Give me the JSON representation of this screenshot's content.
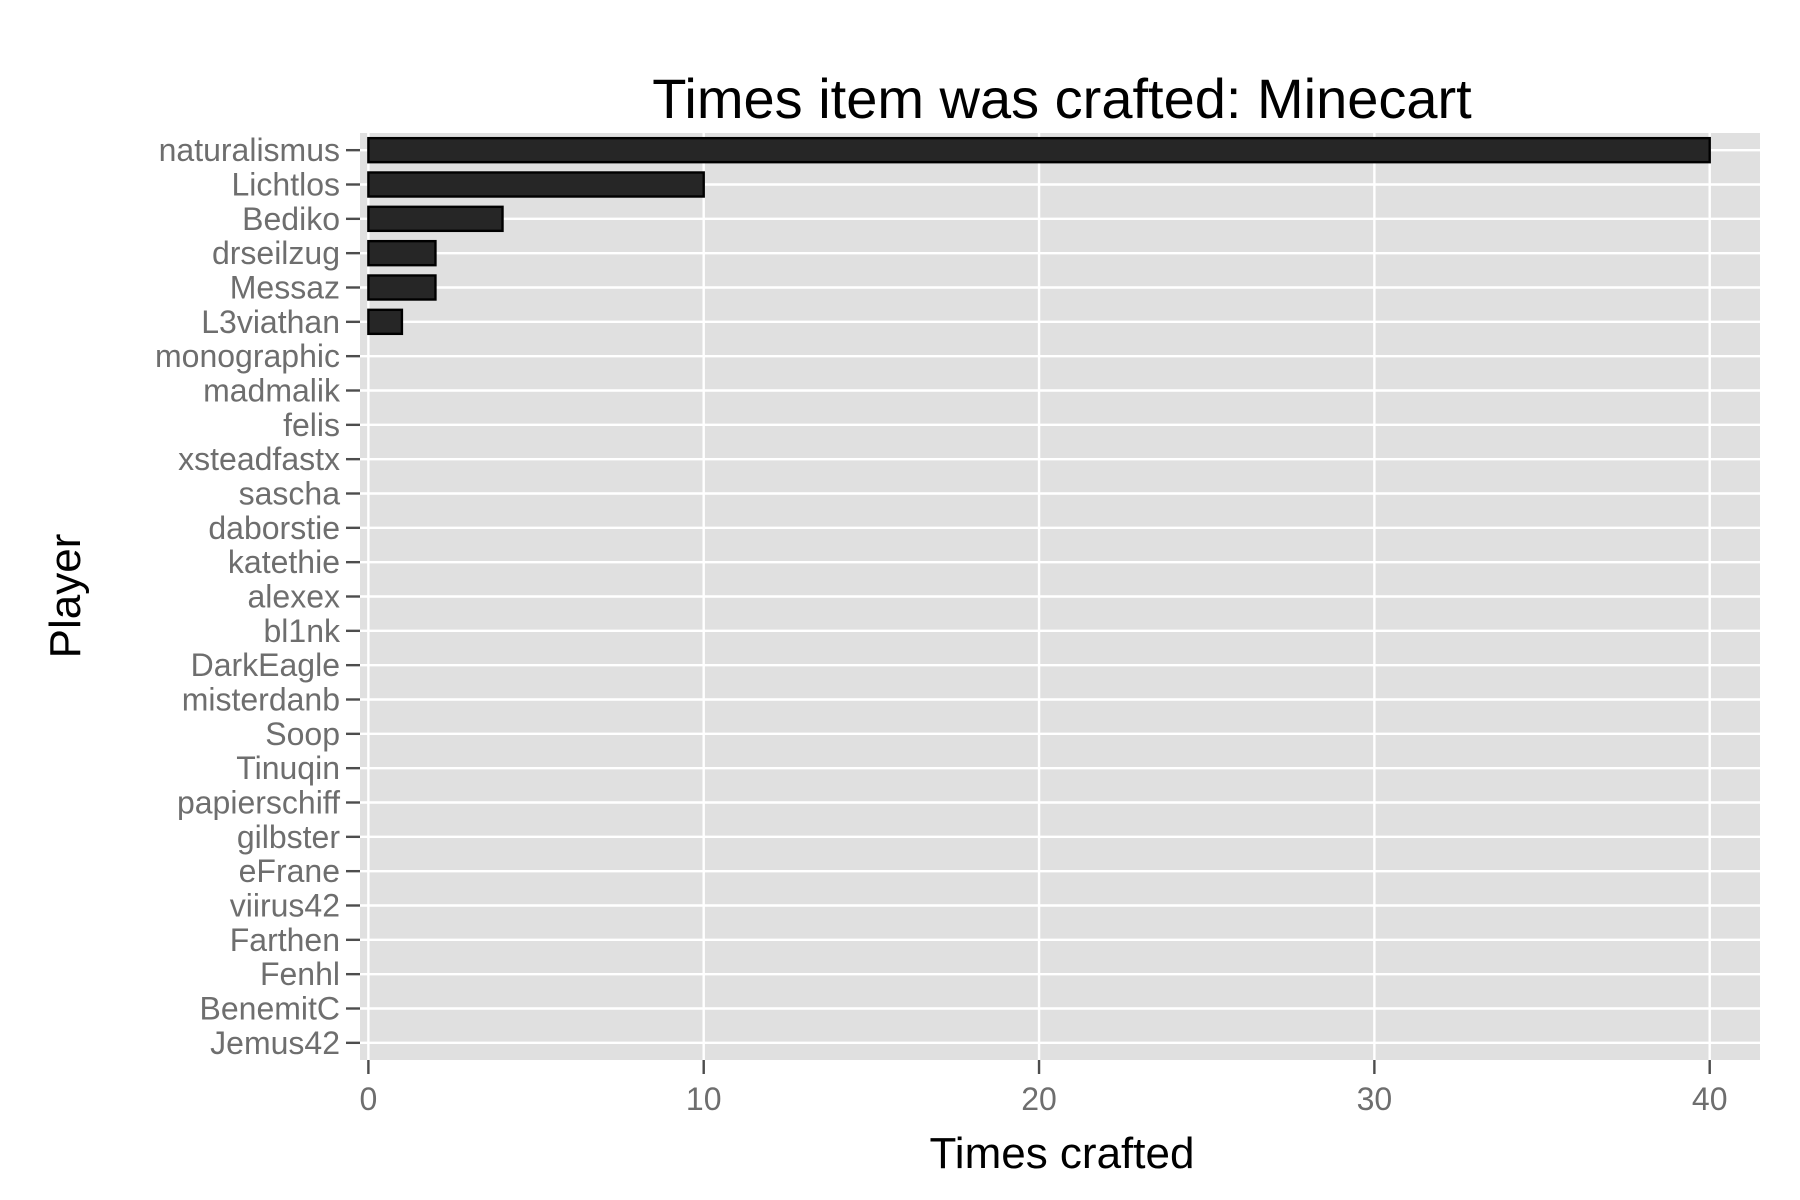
{
  "chart_data": {
    "type": "bar",
    "orientation": "horizontal",
    "title": "Times item was crafted: Minecart",
    "xlabel": "Times crafted",
    "ylabel": "Player",
    "xlim": [
      -0.25,
      41.5
    ],
    "x_ticks": [
      0,
      10,
      20,
      30,
      40
    ],
    "grid": true,
    "categories": [
      "naturalismus",
      "Lichtlos",
      "Bediko",
      "drseilzug",
      "Messaz",
      "L3viathan",
      "monographic",
      "madmalik",
      "felis",
      "xsteadfastx",
      "sascha",
      "daborstie",
      "katethie",
      "alexex",
      "bl1nk",
      "DarkEagle",
      "misterdanb",
      "Soop",
      "Tinuqin",
      "papierschiff",
      "gilbster",
      "eFrane",
      "viirus42",
      "Farthen",
      "Fenhl",
      "BenemitC",
      "Jemus42"
    ],
    "values": [
      40,
      10,
      4,
      2,
      2,
      1,
      0,
      0,
      0,
      0,
      0,
      0,
      0,
      0,
      0,
      0,
      0,
      0,
      0,
      0,
      0,
      0,
      0,
      0,
      0,
      0,
      0
    ],
    "colors": {
      "panel": "#e0e0e0",
      "grid": "#ffffff",
      "bar_fill": "#262626",
      "bar_stroke": "#000000",
      "tick_text": "#6e6e6e"
    }
  }
}
